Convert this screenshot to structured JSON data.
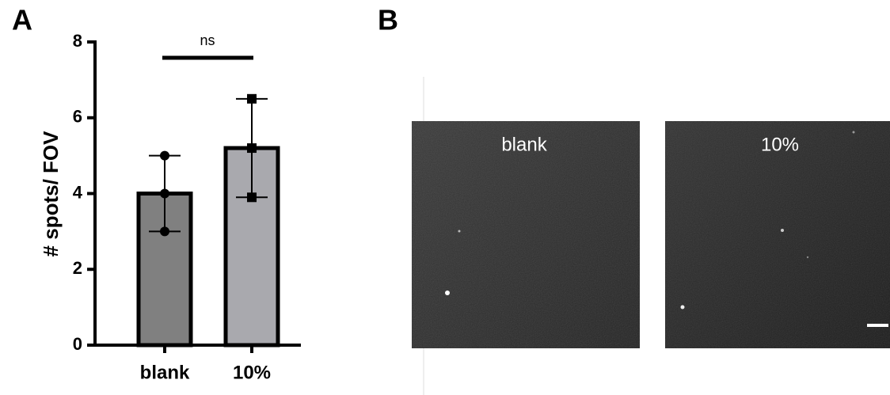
{
  "panel_labels": [
    "A",
    "B"
  ],
  "chart_data": {
    "type": "bar",
    "y_label": "# spots/ FOV",
    "annotation": "ns",
    "categories": [
      "blank",
      "10%"
    ],
    "values": [
      4,
      5.2
    ],
    "errors": [
      1,
      1.3
    ],
    "points": [
      [
        5,
        4,
        3
      ],
      [
        6.5,
        5.2,
        3.9
      ]
    ],
    "markers": [
      "circle",
      "square"
    ],
    "colors": [
      "#808080",
      "#a9a9ae"
    ],
    "ylim": [
      0,
      8
    ],
    "yticks": [
      0,
      2,
      4,
      6,
      8
    ]
  },
  "images": [
    {
      "label": "blank"
    },
    {
      "label": "10%"
    }
  ]
}
